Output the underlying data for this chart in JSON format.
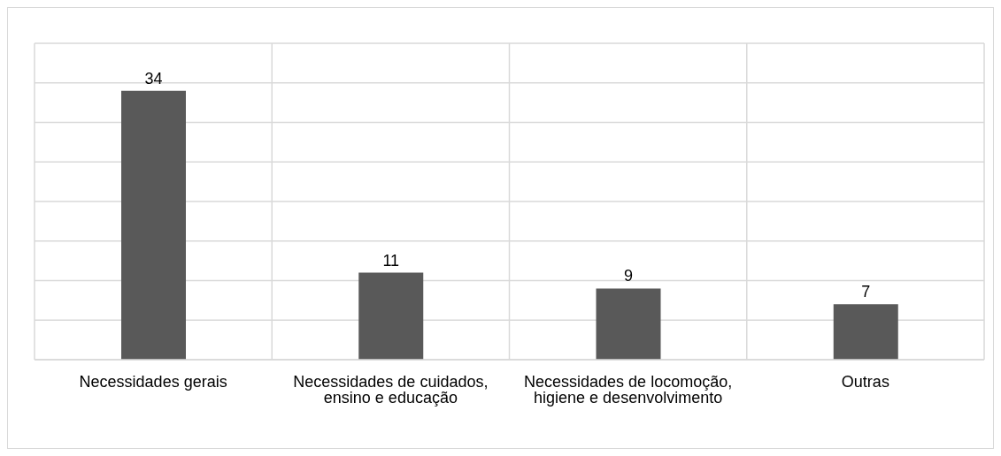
{
  "chart_data": {
    "type": "bar",
    "categories": [
      "Necessidades gerais",
      "Necessidades de cuidados, ensino e educação",
      "Necessidades de locomoção, higiene e desenvolvimento",
      "Outras"
    ],
    "values": [
      34,
      11,
      9,
      7
    ],
    "color": "#595959",
    "data_labels": true,
    "ylim": [
      0,
      40
    ],
    "yticks": [
      {
        "value": 0,
        "label": null
      },
      {
        "value": 5,
        "label": null
      },
      {
        "value": 10,
        "label": null
      },
      {
        "value": 15,
        "label": null
      },
      {
        "value": 20,
        "label": null
      },
      {
        "value": 25,
        "label": null
      },
      {
        "value": 30,
        "label": null
      },
      {
        "value": 35,
        "label": null
      },
      {
        "value": 40,
        "label": null
      }
    ],
    "grid": true,
    "tick_labels": "x"
  }
}
